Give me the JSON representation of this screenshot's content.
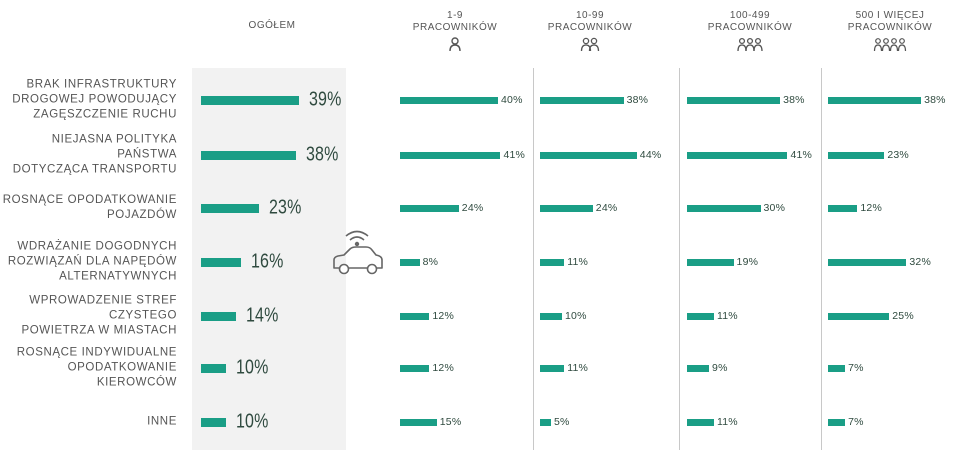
{
  "colors": {
    "bar": "#1a9e86",
    "text": "#555555",
    "value": "#2f4a3f",
    "panel": "#f2f2f2"
  },
  "headers": {
    "overall": "OGÓŁEM",
    "groups": [
      {
        "line1": "1-9",
        "line2": "PRACOWNIKÓW",
        "icon": "person-1-icon"
      },
      {
        "line1": "10-99",
        "line2": "PRACOWNIKÓW",
        "icon": "people-2-icon"
      },
      {
        "line1": "100-499",
        "line2": "PRACOWNIKÓW",
        "icon": "people-3-icon"
      },
      {
        "line1": "500 I WIĘCEJ",
        "line2": "PRACOWNIKÓW",
        "icon": "people-4-icon"
      }
    ]
  },
  "center_icon": "connected-car-icon",
  "chart_data": {
    "type": "bar",
    "orientation": "horizontal",
    "unit": "%",
    "categories": [
      "BRAK INFRASTRUKTURY DROGOWEJ POWODUJĄCY ZAGĘSZCZENIE RUCHU",
      "NIEJASNA POLITYKA PAŃSTWA DOTYCZĄCA TRANSPORTU",
      "ROSNĄCE OPODATKOWANIE POJAZDÓW",
      "WDRAŻANIE DOGODNYCH ROZWIĄZAŃ DLA NAPĘDÓW ALTERNATYWNYCH",
      "WPROWADZENIE STREF CZYSTEGO POWIETRZA W MIASTACH",
      "ROSNĄCE INDYWIDUALNE OPODATKOWANIE KIEROWCÓW",
      "INNE"
    ],
    "category_lines": [
      [
        "BRAK INFRASTRUKTURY",
        "DROGOWEJ POWODUJĄCY",
        "ZAGĘSZCZENIE RUCHU"
      ],
      [
        "NIEJASNA POLITYKA PAŃSTWA",
        "DOTYCZĄCA TRANSPORTU"
      ],
      [
        "ROSNĄCE OPODATKOWANIE",
        "POJAZDÓW"
      ],
      [
        "WDRAŻANIE DOGODNYCH",
        "ROZWIĄZAŃ DLA NAPĘDÓW",
        "ALTERNATYWNYCH"
      ],
      [
        "WPROWADZENIE STREF CZYSTEGO",
        "POWIETRZA W MIASTACH"
      ],
      [
        "ROSNĄCE INDYWIDUALNE",
        "OPODATKOWANIE KIEROWCÓW"
      ],
      [
        "INNE"
      ]
    ],
    "series": [
      {
        "name": "OGÓŁEM",
        "values": [
          39,
          38,
          23,
          16,
          14,
          10,
          10
        ]
      },
      {
        "name": "1-9 PRACOWNIKÓW",
        "values": [
          40,
          41,
          24,
          8,
          12,
          12,
          15
        ]
      },
      {
        "name": "10-99 PRACOWNIKÓW",
        "values": [
          38,
          44,
          24,
          11,
          10,
          11,
          5
        ]
      },
      {
        "name": "100-499 PRACOWNIKÓW",
        "values": [
          38,
          41,
          30,
          19,
          11,
          9,
          11
        ]
      },
      {
        "name": "500 I WIĘCEJ PRACOWNIKÓW",
        "values": [
          38,
          23,
          12,
          32,
          25,
          7,
          7
        ]
      }
    ]
  }
}
